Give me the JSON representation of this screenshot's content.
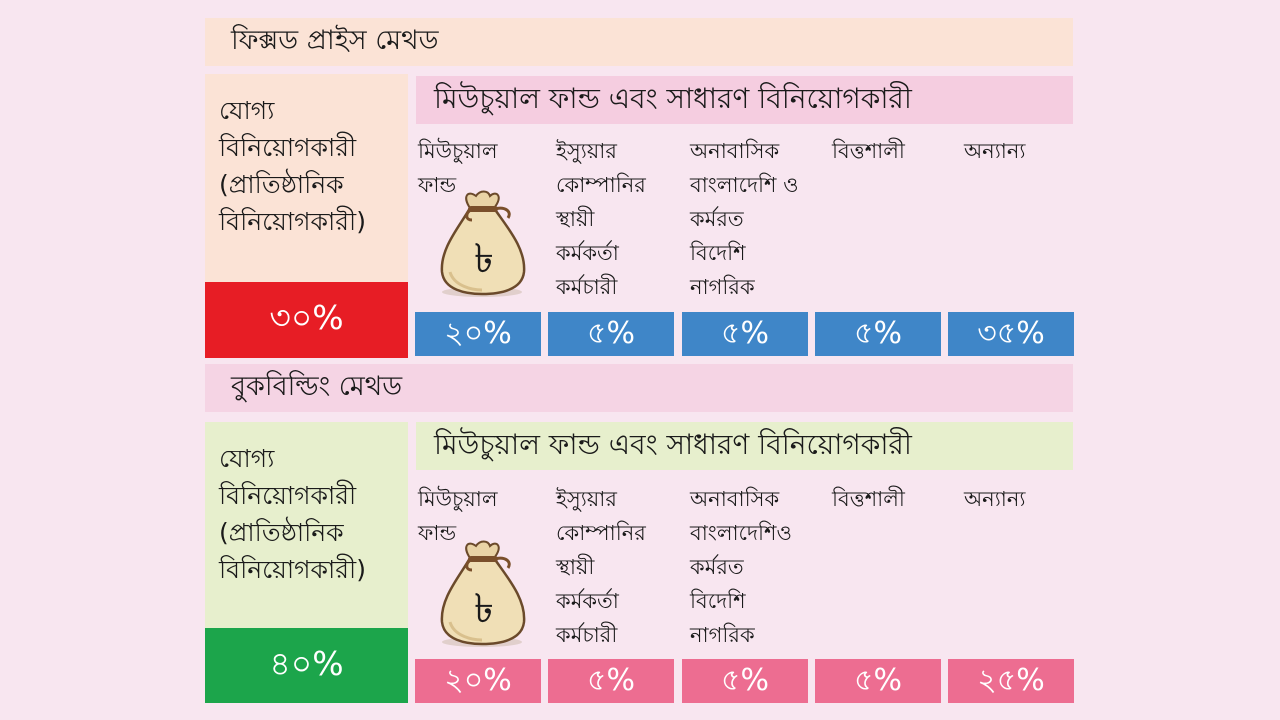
{
  "colors": {
    "background": "#f8e6f0",
    "fixed_title_bg": "#fbe3d6",
    "book_title_bg": "#f5d4e4",
    "eligible_fixed_bg": "#fbe3d6",
    "eligible_book_bg": "#e7efcd",
    "fixed_institutional_pct_bg": "#e71d25",
    "book_institutional_pct_bg": "#1ca54b",
    "fixed_sub_head_bg": "#f5cde0",
    "book_sub_head_bg": "#e7efcd",
    "fixed_pct_bg": "#3f86c8",
    "book_pct_bg": "#ed6d91"
  },
  "fixed": {
    "title": "ফিক্সড প্রাইস মেথড",
    "eligible_lines": [
      "যোগ্য",
      "বিনিয়োগকারী",
      "(প্রাতিষ্ঠানিক",
      "বিনিয়োগকারী)"
    ],
    "institutional_pct": "৩০%",
    "sub_head": "মিউচুয়াল ফান্ড এবং সাধারণ বিনিয়োগকারী",
    "categories": [
      {
        "lines": [
          "মিউচুয়াল",
          "ফান্ড"
        ],
        "pct": "২০%",
        "icon": "taka-money-bag-icon"
      },
      {
        "lines": [
          "ইস্যুয়ার",
          "কোম্পানির",
          "স্থায়ী",
          "কর্মকর্তা",
          "কর্মচারী"
        ],
        "pct": "৫%"
      },
      {
        "lines": [
          "অনাবাসিক",
          "বাংলাদেশি ও",
          "কর্মরত",
          "বিদেশি",
          "নাগরিক"
        ],
        "pct": "৫%"
      },
      {
        "lines": [
          "বিত্তশালী"
        ],
        "pct": "৫%"
      },
      {
        "lines": [
          "অন্যান্য"
        ],
        "pct": "৩৫%"
      }
    ]
  },
  "book": {
    "title": "বুকবিল্ডিং মেথড",
    "eligible_lines": [
      "যোগ্য",
      "বিনিয়োগকারী",
      "(প্রাতিষ্ঠানিক",
      "বিনিয়োগকারী)"
    ],
    "institutional_pct": "৪০%",
    "sub_head": "মিউচুয়াল ফান্ড এবং সাধারণ বিনিয়োগকারী",
    "categories": [
      {
        "lines": [
          "মিউচুয়াল",
          "ফান্ড"
        ],
        "pct": "২০%",
        "icon": "taka-money-bag-icon"
      },
      {
        "lines": [
          "ইস্যুয়ার",
          "কোম্পানির",
          "স্থায়ী",
          "কর্মকর্তা",
          "কর্মচারী"
        ],
        "pct": "৫%"
      },
      {
        "lines": [
          "অনাবাসিক",
          "বাংলাদেশিও",
          "কর্মরত",
          "বিদেশি",
          "নাগরিক"
        ],
        "pct": "৫%"
      },
      {
        "lines": [
          "বিত্তশালী"
        ],
        "pct": "৫%"
      },
      {
        "lines": [
          "অন্যান্য"
        ],
        "pct": "২৫%"
      }
    ]
  }
}
